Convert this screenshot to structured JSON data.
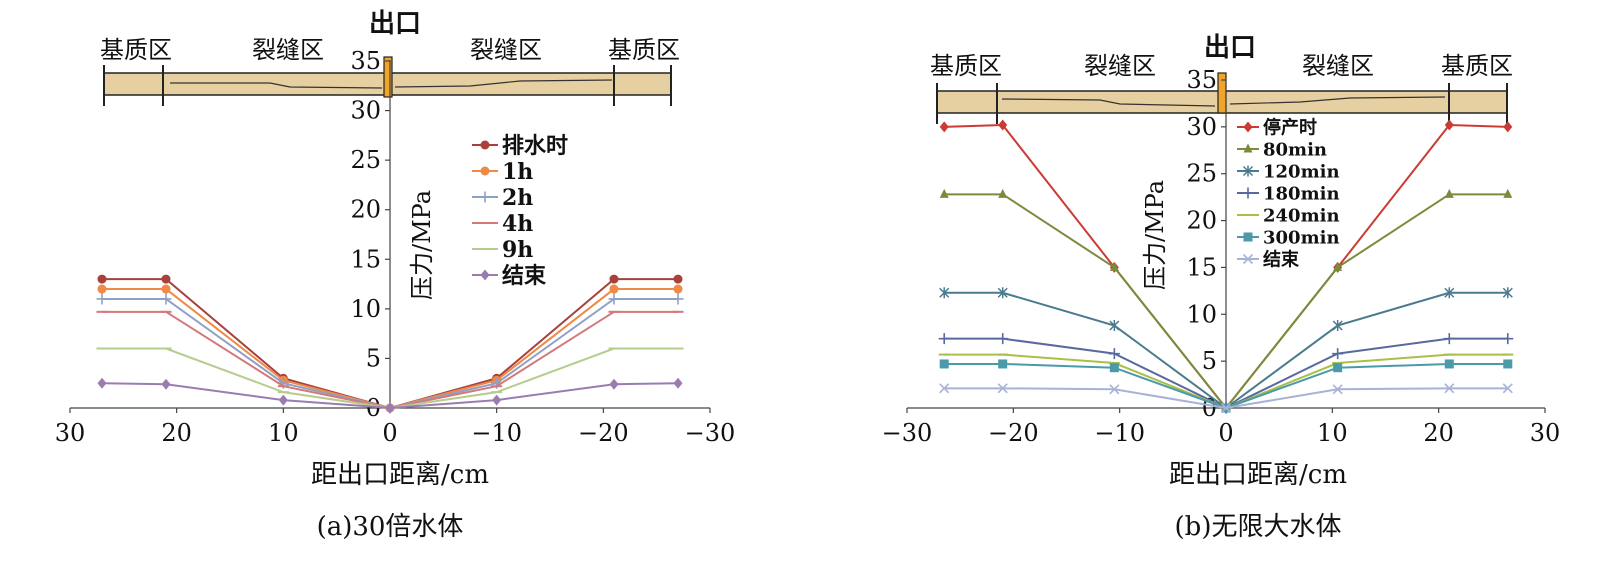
{
  "colors": {
    "core": "#e6cfa0",
    "outlet": "#f0a52a",
    "axis": "#444444"
  },
  "chart_data": [
    {
      "type": "line",
      "caption": "(a)30倍水体",
      "xlabel": "距出口距离/cm",
      "ylabel": "压力/MPa",
      "outlet_label": "出口",
      "zone_labels": [
        "基质区",
        "裂缝区",
        "裂缝区",
        "基质区"
      ],
      "xlim": [
        30,
        -30
      ],
      "ylim": [
        0,
        35
      ],
      "xticks": [
        "30",
        "20",
        "10",
        "0",
        "−10",
        "−20",
        "−30"
      ],
      "xtick_values": [
        30,
        20,
        10,
        0,
        -10,
        -20,
        -30
      ],
      "yticks": [
        "0",
        "5",
        "10",
        "15",
        "20",
        "25",
        "30",
        "35"
      ],
      "ytick_values": [
        0,
        5,
        10,
        15,
        20,
        25,
        30,
        35
      ],
      "x": [
        27,
        21,
        10,
        0,
        -10,
        -21,
        -27
      ],
      "series": [
        {
          "name": "排水时",
          "color": "#a8413c",
          "marker": "circle",
          "values": [
            13,
            13,
            3,
            0,
            3,
            13,
            13
          ]
        },
        {
          "name": "1h",
          "color": "#ee8a43",
          "marker": "circle",
          "values": [
            12,
            12,
            2.8,
            0,
            2.8,
            12,
            12
          ]
        },
        {
          "name": "2h",
          "color": "#8fa0c8",
          "marker": "plus",
          "values": [
            11,
            11,
            2.5,
            0,
            2.5,
            11,
            11
          ]
        },
        {
          "name": "4h",
          "color": "#d4787a",
          "marker": "dash",
          "values": [
            9.7,
            9.7,
            2.2,
            0,
            2.2,
            9.7,
            9.7
          ]
        },
        {
          "name": "9h",
          "color": "#b6cc8c",
          "marker": "dash",
          "values": [
            6,
            6,
            1.6,
            0,
            1.6,
            6,
            6
          ]
        },
        {
          "name": "结束",
          "color": "#9a7cb2",
          "marker": "diamond",
          "values": [
            2.5,
            2.4,
            0.8,
            0,
            0.8,
            2.4,
            2.5
          ]
        }
      ]
    },
    {
      "type": "line",
      "caption": "(b)无限大水体",
      "xlabel": "距出口距离/cm",
      "ylabel": "压力/MPa",
      "outlet_label": "出口",
      "zone_labels": [
        "基质区",
        "裂缝区",
        "裂缝区",
        "基质区"
      ],
      "xlim": [
        -30,
        30
      ],
      "ylim": [
        0,
        35
      ],
      "xticks": [
        "−30",
        "−20",
        "−10",
        "0",
        "10",
        "20",
        "30"
      ],
      "xtick_values": [
        -30,
        -20,
        -10,
        0,
        10,
        20,
        30
      ],
      "yticks": [
        "0",
        "5",
        "10",
        "15",
        "20",
        "25",
        "30",
        "35"
      ],
      "ytick_values": [
        0,
        5,
        10,
        15,
        20,
        25,
        30,
        35
      ],
      "x": [
        -26.5,
        -21,
        -10.5,
        0,
        10.5,
        21,
        26.5
      ],
      "series": [
        {
          "name": "停产时",
          "color": "#cc3a34",
          "marker": "diamond",
          "values": [
            30,
            30.2,
            15,
            0,
            15,
            30.2,
            30
          ]
        },
        {
          "name": "80min",
          "color": "#7a8c3c",
          "marker": "triangle",
          "values": [
            22.8,
            22.8,
            15,
            0,
            15,
            22.8,
            22.8
          ]
        },
        {
          "name": "120min",
          "color": "#4a7a8e",
          "marker": "star",
          "values": [
            12.3,
            12.3,
            8.8,
            0,
            8.8,
            12.3,
            12.3
          ]
        },
        {
          "name": "180min",
          "color": "#5868a0",
          "marker": "plus",
          "values": [
            7.4,
            7.4,
            5.8,
            0,
            5.8,
            7.4,
            7.4
          ]
        },
        {
          "name": "240min",
          "color": "#a8c048",
          "marker": "dash",
          "values": [
            5.7,
            5.7,
            4.8,
            0,
            4.8,
            5.7,
            5.7
          ]
        },
        {
          "name": "300min",
          "color": "#4a9aaa",
          "marker": "square",
          "values": [
            4.7,
            4.7,
            4.3,
            0,
            4.3,
            4.7,
            4.7
          ]
        },
        {
          "name": "结束",
          "color": "#a8b2d8",
          "marker": "cross",
          "values": [
            2.1,
            2.1,
            2,
            0,
            2,
            2.1,
            2.1
          ]
        }
      ]
    }
  ]
}
